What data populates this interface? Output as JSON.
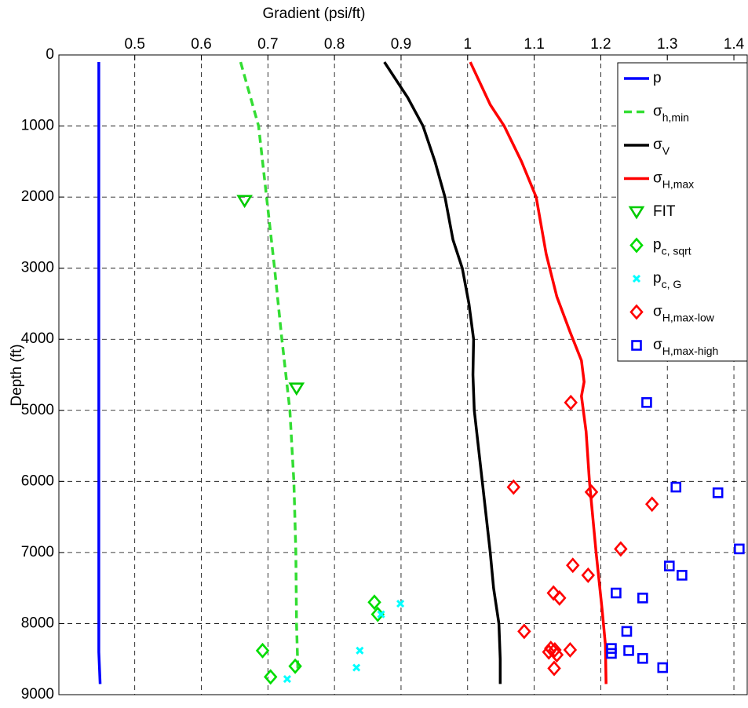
{
  "chart_data": {
    "type": "scatter",
    "title": "Gradient (psi/ft)",
    "y_label": "Depth (ft)",
    "xlim": [
      0.386,
      1.42
    ],
    "ylim": [
      0,
      9000
    ],
    "y_inverted": true,
    "x_axis_position": "top",
    "xticks": [
      0.5,
      0.6,
      0.7,
      0.8,
      0.9,
      1,
      1.1,
      1.2,
      1.3,
      1.4
    ],
    "yticks": [
      0,
      1000,
      2000,
      3000,
      4000,
      5000,
      6000,
      7000,
      8000,
      9000
    ],
    "grid": true,
    "legend": "upper right",
    "series": [
      {
        "name": "p",
        "name_subscript": "",
        "color": "#0000ff",
        "style": "line",
        "x": [
          0.446,
          0.446,
          0.448
        ],
        "y": [
          100,
          8400,
          8850
        ]
      },
      {
        "name": "σ",
        "name_subscript": "h,min",
        "color": "#33dd33",
        "style": "dashed",
        "x": [
          0.659,
          0.686,
          0.698,
          0.71,
          0.721,
          0.733,
          0.739,
          0.742,
          0.743,
          0.745
        ],
        "y": [
          100,
          1000,
          2000,
          3000,
          4000,
          5000,
          6000,
          7000,
          8000,
          8650
        ]
      },
      {
        "name": "σ",
        "name_subscript": "V",
        "color": "#000000",
        "style": "line",
        "x": [
          0.875,
          0.91,
          0.933,
          0.951,
          0.966,
          0.978,
          0.992,
          1.002,
          1.009,
          1.008,
          1.01,
          1.022,
          1.034,
          1.039,
          1.047,
          1.049,
          1.049
        ],
        "y": [
          100,
          600,
          1000,
          1500,
          2000,
          2600,
          3000,
          3500,
          4000,
          4500,
          5000,
          6000,
          7000,
          7500,
          8000,
          8500,
          8850
        ]
      },
      {
        "name": "σ",
        "name_subscript": "H,max",
        "color": "#ff0000",
        "style": "line",
        "x": [
          1.004,
          1.034,
          1.055,
          1.081,
          1.103,
          1.118,
          1.134,
          1.154,
          1.171,
          1.175,
          1.171,
          1.178,
          1.183,
          1.193,
          1.202,
          1.207,
          1.208
        ],
        "y": [
          100,
          700,
          1000,
          1500,
          2000,
          2800,
          3400,
          3900,
          4300,
          4600,
          4800,
          5300,
          6000,
          7000,
          7800,
          8300,
          8850
        ]
      },
      {
        "name": "FIT",
        "name_subscript": "",
        "color": "#00cc00",
        "style": "triangle",
        "x": [
          0.665,
          0.743
        ],
        "y": [
          2050,
          4690
        ]
      },
      {
        "name": "p",
        "name_subscript": "c, sqrt",
        "color": "#00dd00",
        "style": "diamond",
        "x": [
          0.86,
          0.865,
          0.692,
          0.741,
          0.704
        ],
        "y": [
          7700,
          7870,
          8380,
          8600,
          8750
        ]
      },
      {
        "name": "p",
        "name_subscript": "c, G",
        "color": "#00ffff",
        "style": "cross",
        "x": [
          0.87,
          0.899,
          0.838,
          0.833,
          0.729
        ],
        "y": [
          7870,
          7720,
          8380,
          8620,
          8780
        ]
      },
      {
        "name": "σ",
        "name_subscript": "H,max-low",
        "color": "#ff0000",
        "style": "diamond",
        "x": [
          1.155,
          1.069,
          1.186,
          1.277,
          1.23,
          1.158,
          1.181,
          1.129,
          1.138,
          1.085,
          1.125,
          1.131,
          1.122,
          1.134,
          1.154,
          1.13
        ],
        "y": [
          4890,
          6080,
          6150,
          6320,
          6950,
          7180,
          7320,
          7570,
          7640,
          8110,
          8350,
          8370,
          8400,
          8440,
          8370,
          8630
        ]
      },
      {
        "name": "σ",
        "name_subscript": "H,max-high",
        "color": "#0000ff",
        "style": "square",
        "x": [
          1.269,
          1.313,
          1.376,
          1.408,
          1.303,
          1.322,
          1.223,
          1.263,
          1.239,
          1.216,
          1.216,
          1.242,
          1.263,
          1.293
        ],
        "y": [
          4890,
          6080,
          6160,
          6950,
          7190,
          7320,
          7570,
          7640,
          8110,
          8350,
          8420,
          8380,
          8490,
          8620
        ]
      }
    ]
  }
}
